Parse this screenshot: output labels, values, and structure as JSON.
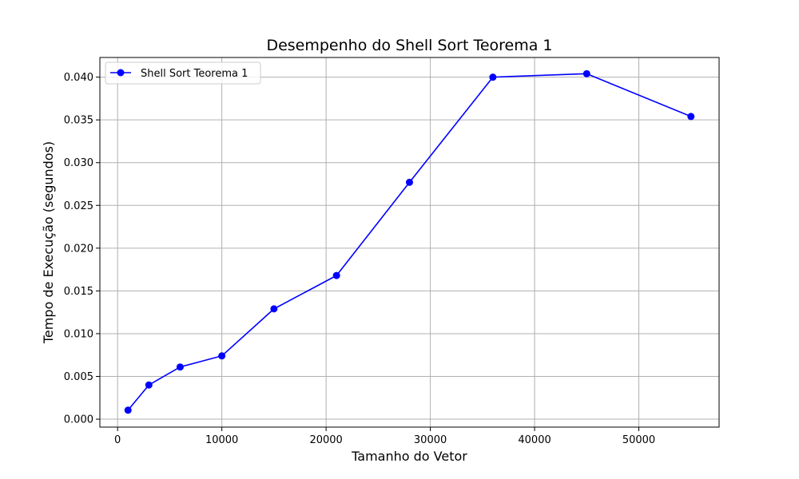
{
  "chart_data": {
    "type": "line",
    "title": "Desempenho do Shell Sort Teorema 1",
    "xlabel": "Tamanho do Vetor",
    "ylabel": "Tempo de Execução (segundos)",
    "xlim": [
      -1700,
      57700
    ],
    "ylim": [
      -0.00093,
      0.0423
    ],
    "x_ticks": [
      0,
      10000,
      20000,
      30000,
      40000,
      50000
    ],
    "x_tick_labels": [
      "0",
      "10000",
      "20000",
      "30000",
      "40000",
      "50000"
    ],
    "y_ticks": [
      0.0,
      0.005,
      0.01,
      0.015,
      0.02,
      0.025,
      0.03,
      0.035,
      0.04
    ],
    "y_tick_labels": [
      "0.000",
      "0.005",
      "0.010",
      "0.015",
      "0.020",
      "0.025",
      "0.030",
      "0.035",
      "0.040"
    ],
    "grid": true,
    "legend_position": "upper-left",
    "series": [
      {
        "name": "Shell Sort Teorema 1",
        "color": "#0000ff",
        "marker": "circle",
        "x": [
          1000,
          3000,
          6000,
          10000,
          15000,
          21000,
          28000,
          36000,
          45000,
          55000
        ],
        "y": [
          0.00105,
          0.004,
          0.0061,
          0.0074,
          0.0129,
          0.0168,
          0.0277,
          0.04,
          0.0404,
          0.0354
        ]
      }
    ]
  }
}
